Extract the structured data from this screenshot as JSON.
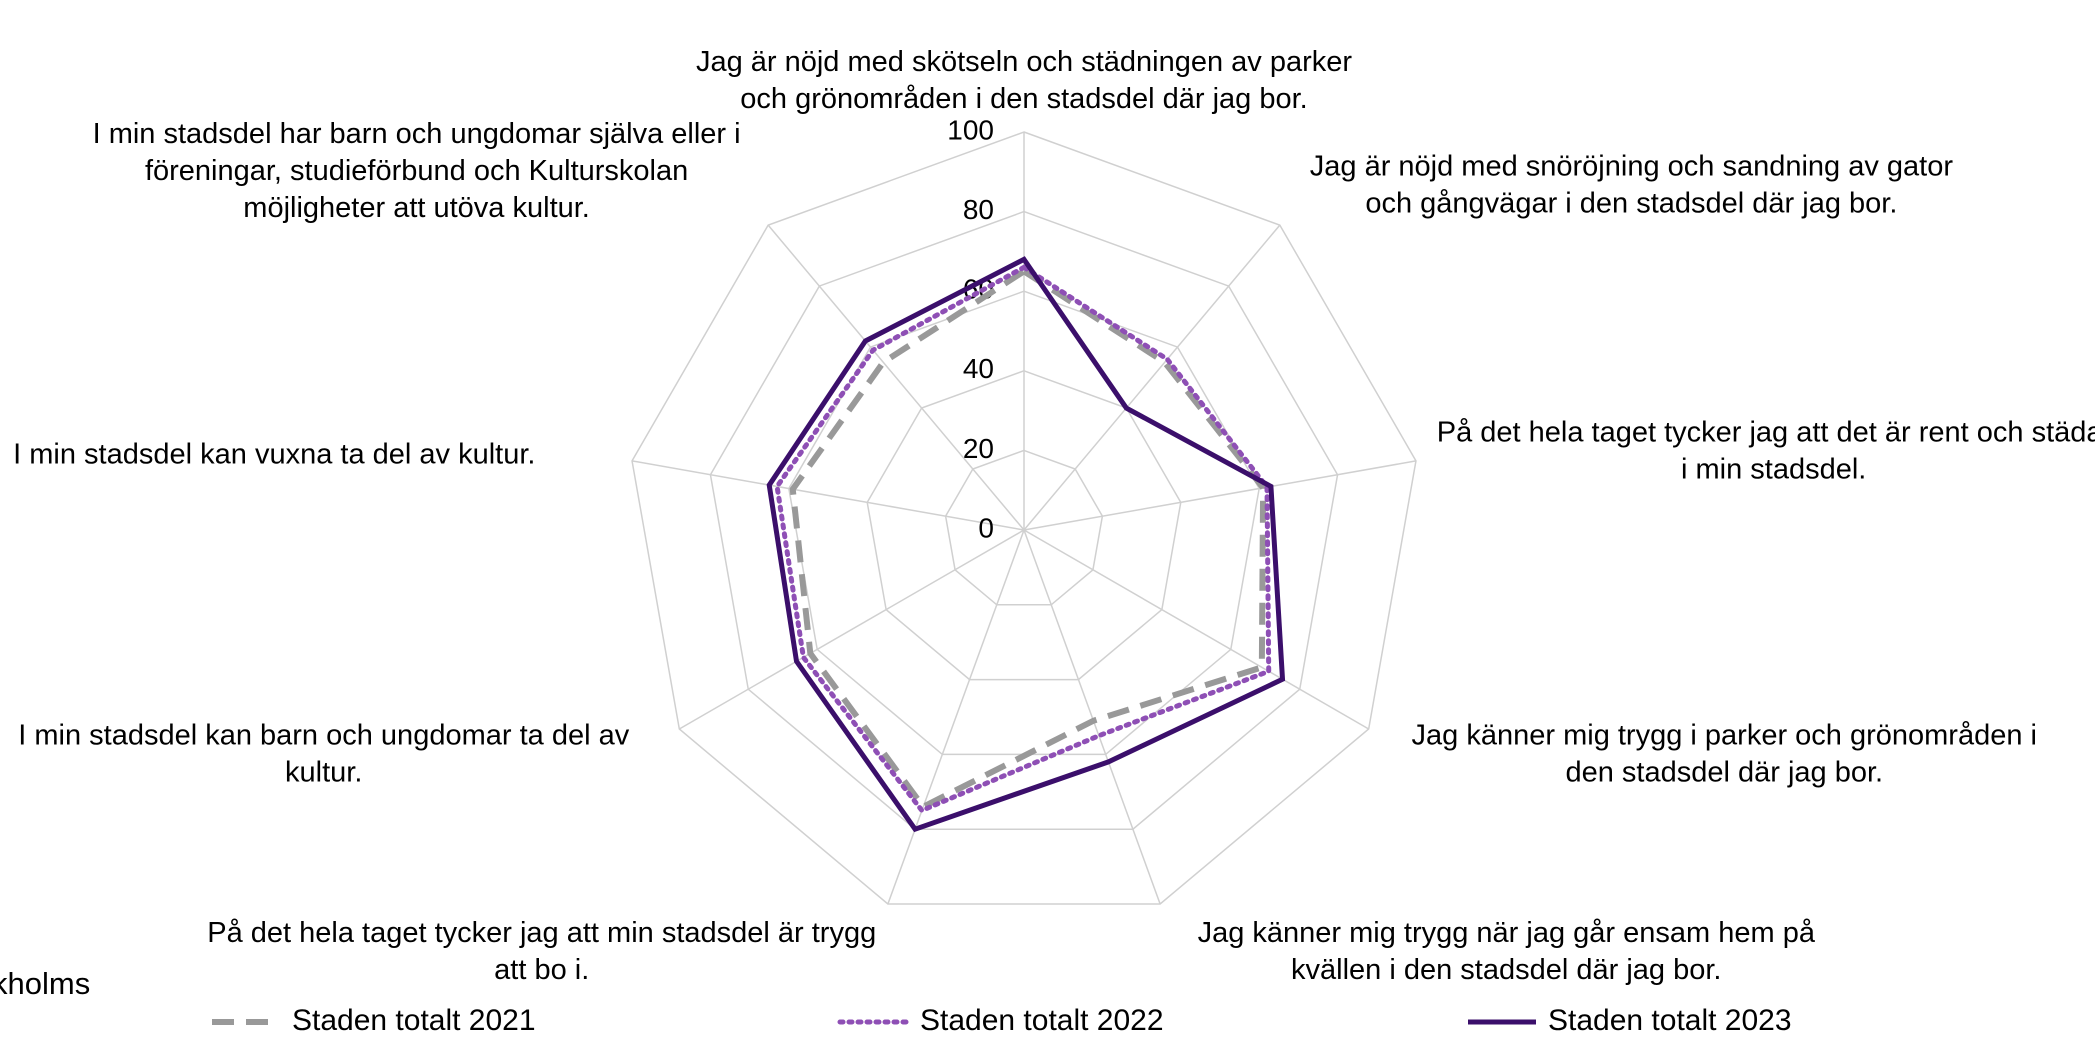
{
  "chart_data": {
    "type": "radar",
    "categories": [
      "Jag är nöjd med skötseln och städningen av parker och grönområden i den stadsdel där jag bor.",
      "Jag är nöjd med snöröjning och sandning av gator och gångvägar i den stadsdel där jag bor.",
      "På det hela taget tycker jag att det är rent och städat i min stadsdel.",
      "Jag känner mig trygg i parker och grönområden i den stadsdel där jag bor.",
      "Jag känner mig trygg när jag går ensam hem på kvällen i den stadsdel där jag bor.",
      "På det hela taget tycker jag att min stadsdel är trygg att bo i.",
      "I min stadsdel kan barn och ungdomar ta del av kultur.",
      "I min stadsdel kan vuxna ta del av kultur.",
      "I min stadsdel har barn och ungdomar själva eller i föreningar, studieförbund och Kulturskolan möjligheter att utöva kultur."
    ],
    "series": [
      {
        "name": "Staden totalt 2021",
        "color": "#999999",
        "style": "dashed",
        "values": [
          65,
          55,
          61,
          69,
          51,
          74,
          62,
          59,
          55
        ]
      },
      {
        "name": "Staden totalt 2022",
        "color": "#8e4fb5",
        "style": "dotted",
        "values": [
          66,
          56,
          62,
          71,
          55,
          75,
          64,
          63,
          59
        ]
      },
      {
        "name": "Staden totalt 2023",
        "color": "#3b0f6b",
        "style": "solid",
        "values": [
          68,
          40,
          63,
          75,
          62,
          80,
          66,
          65,
          62
        ]
      }
    ],
    "ylim": [
      0,
      100
    ],
    "yticks": [
      0,
      20,
      40,
      60,
      80,
      100
    ],
    "grid": true,
    "legend": "bottom",
    "annotations": [
      "kholms"
    ]
  }
}
